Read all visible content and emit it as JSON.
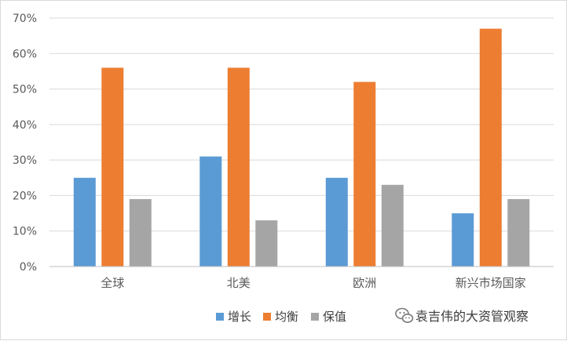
{
  "chart_data": {
    "type": "bar",
    "categories": [
      "全球",
      "北美",
      "欧洲",
      "新兴市场国家"
    ],
    "series": [
      {
        "name": "增长",
        "values": [
          25,
          31,
          25,
          15
        ],
        "color": "#5b9bd5"
      },
      {
        "name": "均衡",
        "values": [
          56,
          56,
          52,
          67
        ],
        "color": "#ed7d31"
      },
      {
        "name": "保值",
        "values": [
          19,
          13,
          23,
          19
        ],
        "color": "#a5a5a5"
      }
    ],
    "yticks": [
      "0%",
      "10%",
      "20%",
      "30%",
      "40%",
      "50%",
      "60%",
      "70%"
    ],
    "ylim": [
      0,
      70
    ],
    "grid": true,
    "legend_position": "bottom",
    "title": "",
    "xlabel": "",
    "ylabel": ""
  },
  "watermark": {
    "text": "袁吉伟的大资管观察",
    "icon": "wechat-icon"
  }
}
